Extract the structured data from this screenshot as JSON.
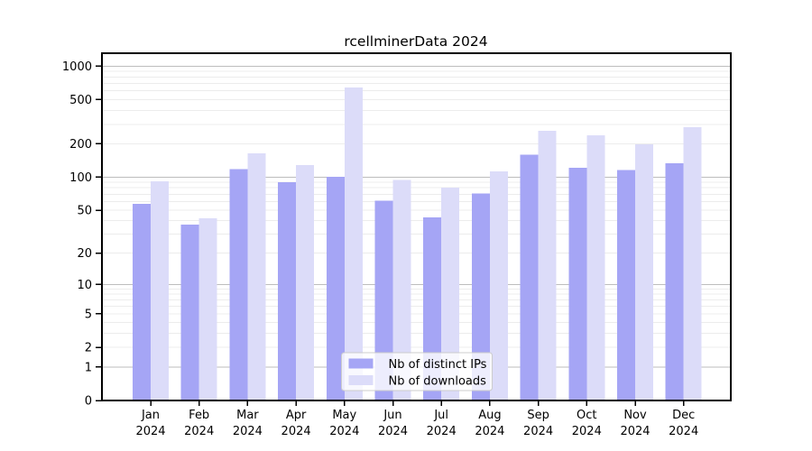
{
  "chart_data": {
    "type": "bar",
    "title": "rcellminerData 2024",
    "categories": [
      "Jan",
      "Feb",
      "Mar",
      "Apr",
      "May",
      "Jun",
      "Jul",
      "Aug",
      "Sep",
      "Oct",
      "Nov",
      "Dec"
    ],
    "x_tick_second_line": "2024",
    "series": [
      {
        "name": "Nb of distinct IPs",
        "color": "#a5a5f5",
        "values": [
          57,
          37,
          118,
          90,
          101,
          61,
          43,
          71,
          160,
          121,
          116,
          133
        ]
      },
      {
        "name": "Nb of downloads",
        "color": "#dcdcf9",
        "values": [
          92,
          42,
          164,
          128,
          640,
          94,
          80,
          113,
          262,
          238,
          198,
          282
        ]
      }
    ],
    "y_scale": "log1p",
    "y_ticks": [
      0,
      1,
      2,
      5,
      10,
      20,
      50,
      100,
      200,
      500,
      1000
    ],
    "y_grid_major": [
      1,
      10,
      100,
      1000
    ],
    "ylim": [
      0,
      1300
    ],
    "grid": "on",
    "legend_position": "inside-bottom-center",
    "colors": {
      "major_grid": "#bdbdbd",
      "minor_grid": "#ececec",
      "axis": "#000000",
      "legend_border": "#cccccc",
      "legend_bg_alpha": 0.8
    }
  }
}
